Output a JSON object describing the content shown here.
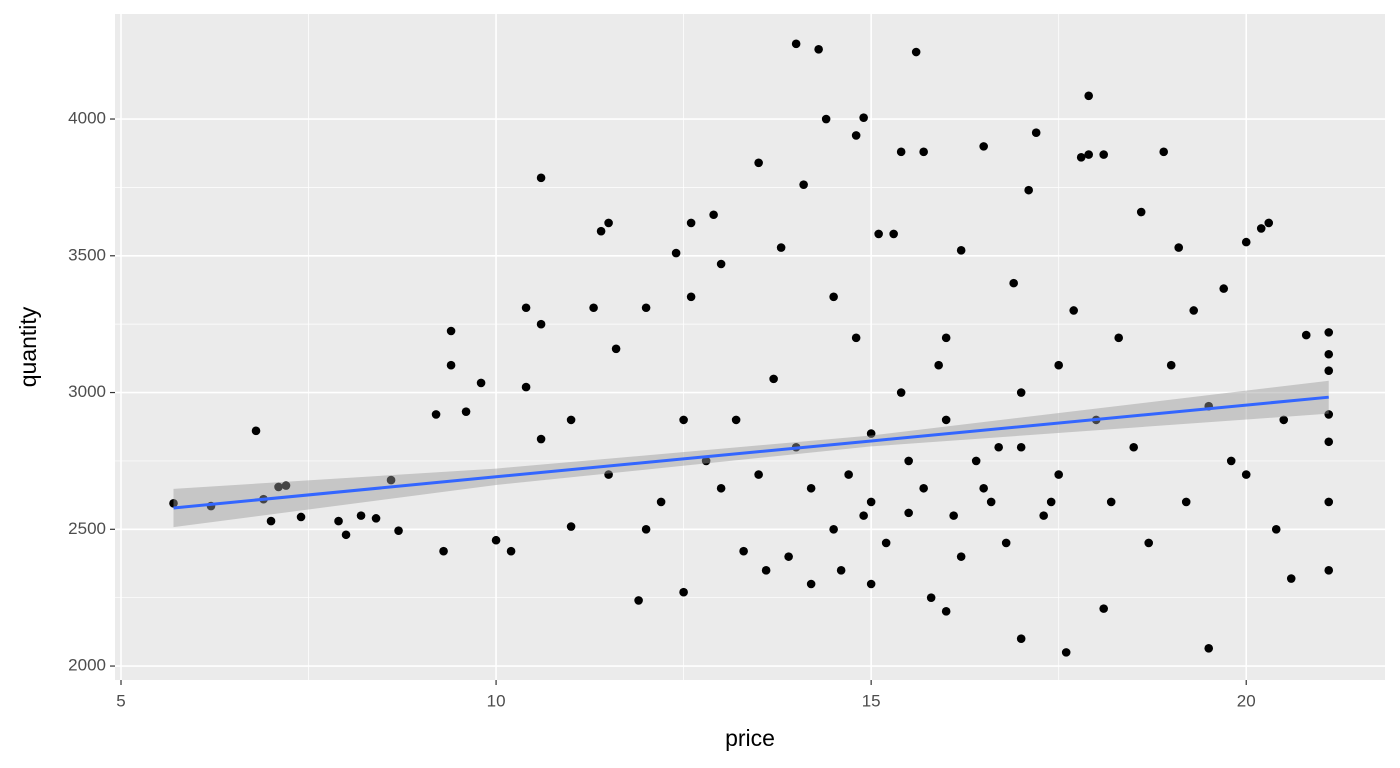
{
  "chart_data": {
    "type": "scatter",
    "x_label": "price",
    "y_label": "quantity",
    "xlim": [
      4.92,
      21.85
    ],
    "ylim": [
      1949,
      4384
    ],
    "xticks": [
      5,
      10,
      15,
      20
    ],
    "yticks": [
      2000,
      2500,
      3000,
      3500,
      4000
    ],
    "grid": true,
    "panel_color": "#ebebeb",
    "series": [
      {
        "color": "#000000",
        "x": [
          5.7,
          6.2,
          6.8,
          6.9,
          7.0,
          7.1,
          7.2,
          7.4,
          7.9,
          8.0,
          8.2,
          8.4,
          8.6,
          8.7,
          9.2,
          9.3,
          9.4,
          9.4,
          9.6,
          9.8,
          10.0,
          10.2,
          10.4,
          10.4,
          10.6,
          10.6,
          10.6,
          11.0,
          11.3,
          11.4,
          11.5,
          11.6,
          11.9,
          12.0,
          12.2,
          12.4,
          12.5,
          12.6,
          12.6,
          12.9,
          13.0,
          13.3,
          13.5,
          13.6,
          13.8,
          14.0,
          14.1,
          14.2,
          14.3,
          14.4,
          14.5,
          14.7,
          14.8,
          14.9,
          15.0,
          15.1,
          15.3,
          15.4,
          15.5,
          15.6,
          15.7,
          15.8,
          16.0,
          16.2,
          16.5,
          16.7,
          17.0,
          17.1,
          17.2,
          17.4,
          17.6,
          17.8,
          17.9,
          17.9,
          18.1,
          18.1,
          18.6,
          18.9,
          19.1,
          19.2,
          19.5,
          19.7,
          20.0,
          20.2,
          20.3,
          20.4,
          20.6,
          20.8,
          21.1,
          21.1,
          21.1,
          21.1,
          21.1,
          21.1,
          21.1,
          20.0,
          19.5,
          19.0,
          18.5,
          18.0,
          17.5,
          17.0,
          16.5,
          16.0,
          15.5,
          15.0,
          14.5,
          14.0,
          13.5,
          13.0,
          12.5,
          12.0,
          11.5,
          11.0,
          16.8,
          16.2,
          15.2,
          14.6,
          13.9,
          17.7,
          18.3,
          16.9,
          15.9,
          14.8,
          13.7,
          12.8,
          15.4,
          16.4,
          17.3,
          18.7,
          19.8,
          20.5,
          19.3,
          18.2,
          15.7,
          14.2,
          16.1,
          17.0,
          15.0,
          14.9,
          16.6,
          16.0,
          17.5,
          13.2
        ],
        "values": [
          2595,
          2585,
          2860,
          2610,
          2530,
          2655,
          2660,
          2545,
          2530,
          2480,
          2550,
          2540,
          2680,
          2495,
          2920,
          2420,
          3100,
          3225,
          2930,
          3035,
          2460,
          2420,
          3310,
          3020,
          3785,
          3250,
          2830,
          2510,
          3310,
          3590,
          3620,
          3160,
          2240,
          3310,
          2600,
          3510,
          2270,
          3620,
          3350,
          3650,
          3470,
          2420,
          3840,
          2350,
          3530,
          4275,
          3760,
          2300,
          4255,
          4000,
          3350,
          2700,
          3940,
          4005,
          2300,
          3580,
          3580,
          3880,
          2560,
          4245,
          3880,
          2250,
          2200,
          3520,
          3900,
          2800,
          2100,
          3740,
          3950,
          2600,
          2050,
          3860,
          3870,
          4085,
          3870,
          2210,
          3660,
          3880,
          3530,
          2600,
          2065,
          3380,
          3550,
          3600,
          3620,
          2500,
          2320,
          3210,
          3220,
          2600,
          2350,
          2820,
          3140,
          3080,
          2920,
          2700,
          2950,
          3100,
          2800,
          2900,
          2700,
          3000,
          2650,
          2900,
          2750,
          2600,
          2500,
          2800,
          2700,
          2650,
          2900,
          2500,
          2700,
          2900,
          2450,
          2400,
          2450,
          2350,
          2400,
          3300,
          3200,
          3400,
          3100,
          3200,
          3050,
          2750,
          3000,
          2750,
          2550,
          2450,
          2750,
          2900,
          3300,
          2600,
          2650,
          2650,
          2550,
          2800,
          2850,
          2550,
          2600,
          3200,
          3100,
          2900
        ]
      }
    ],
    "fit": {
      "color": "#3366ff",
      "band_color": "#999999",
      "x": [
        5.7,
        10,
        15,
        21.1
      ],
      "values": [
        2578,
        2692,
        2823,
        2983
      ],
      "lower": [
        2508,
        2662,
        2803,
        2923
      ],
      "upper": [
        2648,
        2722,
        2843,
        3043
      ]
    }
  }
}
